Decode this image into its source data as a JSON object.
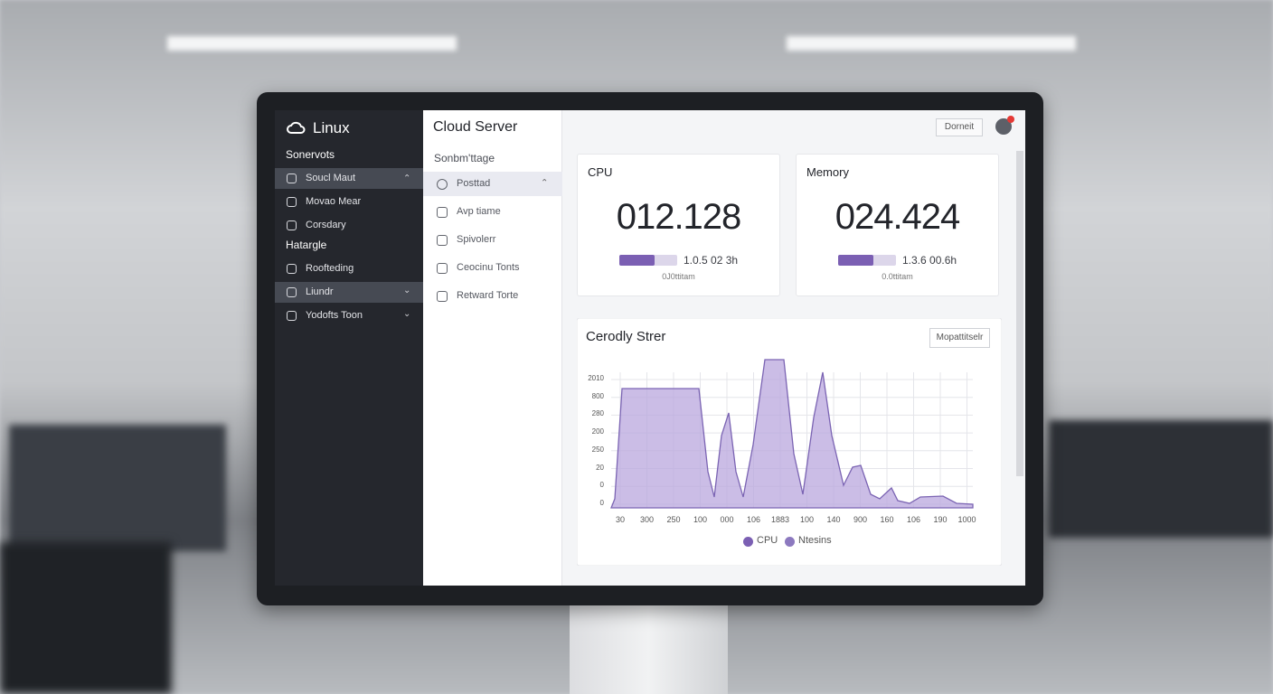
{
  "sidebar": {
    "brand": "Linux",
    "sections": [
      {
        "label": "Sonervots",
        "items": [
          "Soucl Maut",
          "Movao Mear",
          "Corsdary"
        ]
      },
      {
        "label": "Hatargle",
        "items": [
          "Roofteding",
          "Liundr",
          "Yodofts Toon"
        ]
      }
    ]
  },
  "panel": {
    "title": "Cloud Server",
    "subtitle": "Sonbm'ttage",
    "items": [
      "Posttad",
      "Avp tiame",
      "Spivolerr",
      "Ceocinu Tonts",
      "Retward Torte"
    ]
  },
  "header": {
    "button": "Dorneit"
  },
  "cards": [
    {
      "label": "CPU",
      "value": "012.128",
      "meter": "1.0.5 02 3h",
      "note": "0J0ttitam"
    },
    {
      "label": "Memory",
      "value": "024.424",
      "meter": "1.3.6 00.6h",
      "note": "0.0ttitam"
    }
  ],
  "chart": {
    "title": "Cerodly Strer",
    "button": "Mopattitselr",
    "y_labels": [
      "2010",
      "800",
      "280",
      "200",
      "250",
      "20",
      "0",
      "0"
    ],
    "x_labels": [
      "30",
      "300",
      "250",
      "100",
      "000",
      "106",
      "1883",
      "100",
      "140",
      "900",
      "160",
      "106",
      "190",
      "1000"
    ],
    "legend": [
      "CPU",
      "Ntesins"
    ]
  }
}
